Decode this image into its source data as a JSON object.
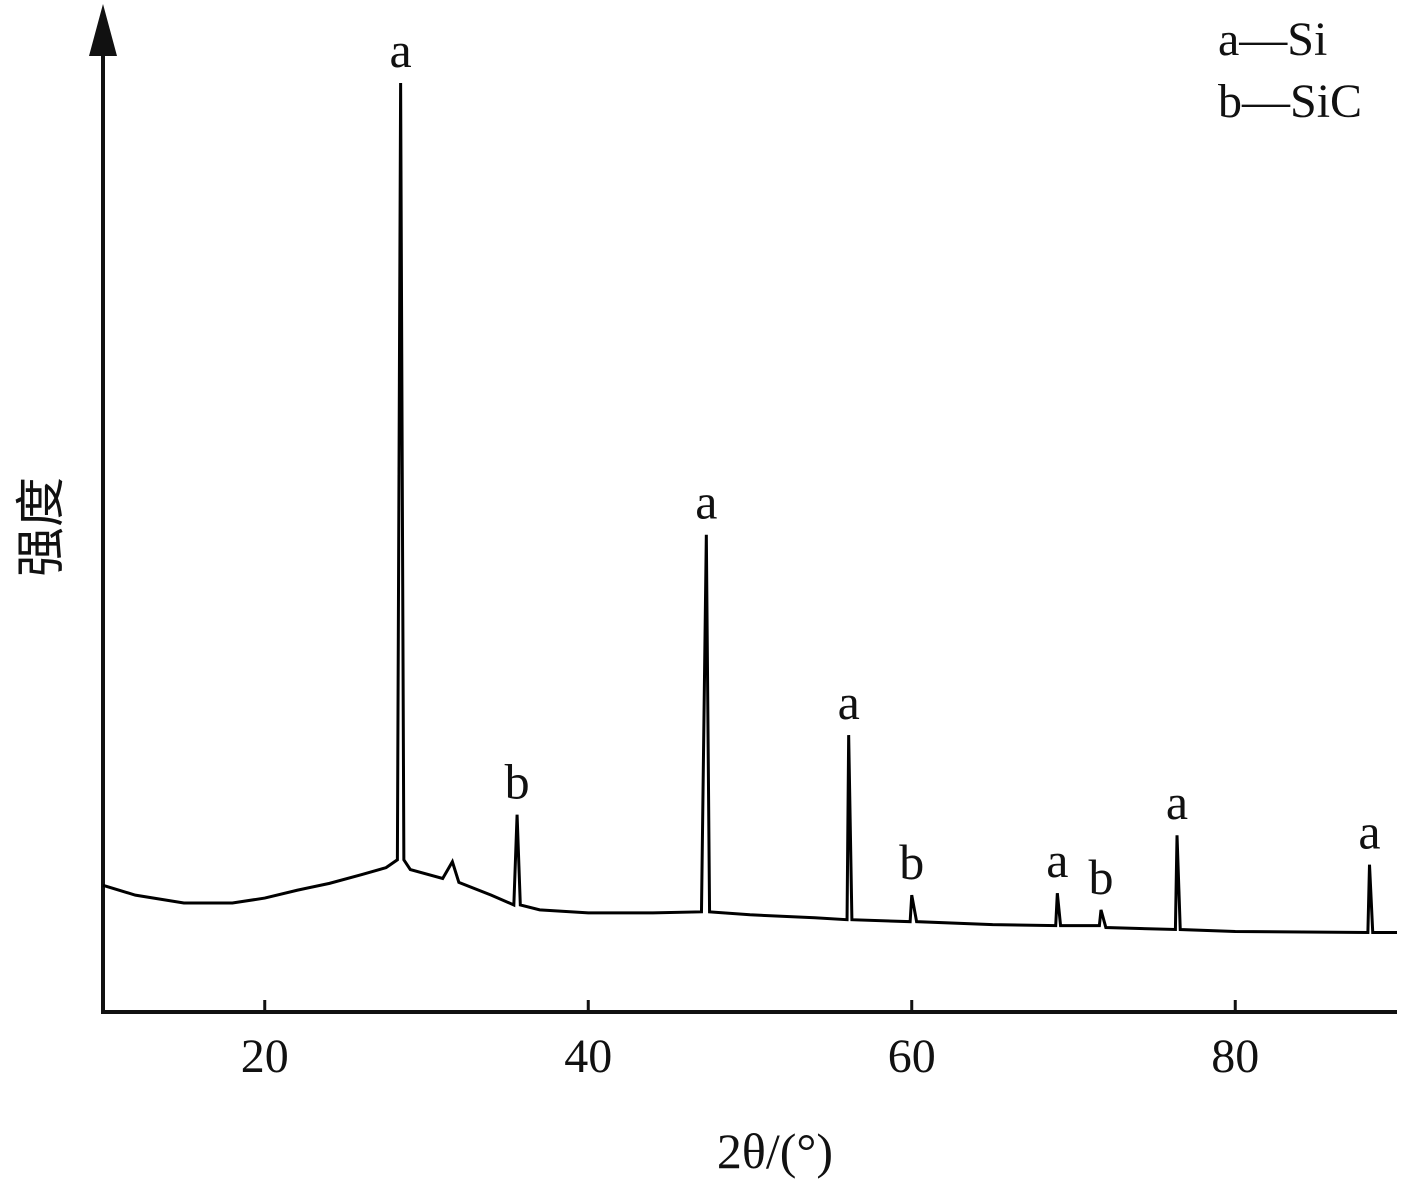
{
  "chart_data": {
    "type": "line",
    "x_label": "2θ/(°)",
    "y_label": "强度",
    "legend_text": [
      "a—Si",
      "b—SiC"
    ],
    "xlim": [
      10,
      90
    ],
    "xticks": [
      20,
      40,
      60,
      80
    ],
    "ylim": [
      0,
      100
    ],
    "series": [
      {
        "color": "#000000",
        "x": [
          10,
          12,
          15,
          18,
          20,
          22,
          24,
          26,
          27.5,
          28.2,
          28.4,
          28.6,
          29,
          31,
          31.6,
          32,
          34,
          35.4,
          35.6,
          35.8,
          37,
          40,
          44,
          47,
          47.3,
          47.5,
          50,
          54,
          56,
          56.1,
          56.3,
          59.9,
          60,
          60.3,
          65,
          68.9,
          69,
          69.2,
          71.6,
          71.7,
          72,
          76.3,
          76.4,
          76.6,
          80,
          88.2,
          88.3,
          88.5,
          90
        ],
        "values": [
          12.9,
          11.9,
          11.1,
          11.1,
          11.6,
          12.4,
          13.1,
          14.0,
          14.7,
          15.5,
          94.6,
          15.5,
          14.5,
          13.6,
          15.3,
          13.2,
          11.9,
          10.9,
          20.1,
          10.9,
          10.4,
          10.1,
          10.1,
          10.2,
          48.6,
          10.2,
          9.9,
          9.6,
          9.4,
          28.2,
          9.4,
          9.2,
          11.9,
          9.2,
          8.9,
          8.8,
          12.1,
          8.8,
          8.8,
          10.4,
          8.6,
          8.4,
          18.0,
          8.4,
          8.2,
          8.1,
          15.0,
          8.1,
          8.1
        ]
      }
    ],
    "annotations": [
      {
        "text": "a",
        "x": 28.4
      },
      {
        "text": "b",
        "x": 35.6
      },
      {
        "text": "a",
        "x": 47.3
      },
      {
        "text": "a",
        "x": 56.1
      },
      {
        "text": "b",
        "x": 60
      },
      {
        "text": "a",
        "x": 69
      },
      {
        "text": "b",
        "x": 71.7
      },
      {
        "text": "a",
        "x": 76.4
      },
      {
        "text": "a",
        "x": 88.3
      }
    ]
  }
}
